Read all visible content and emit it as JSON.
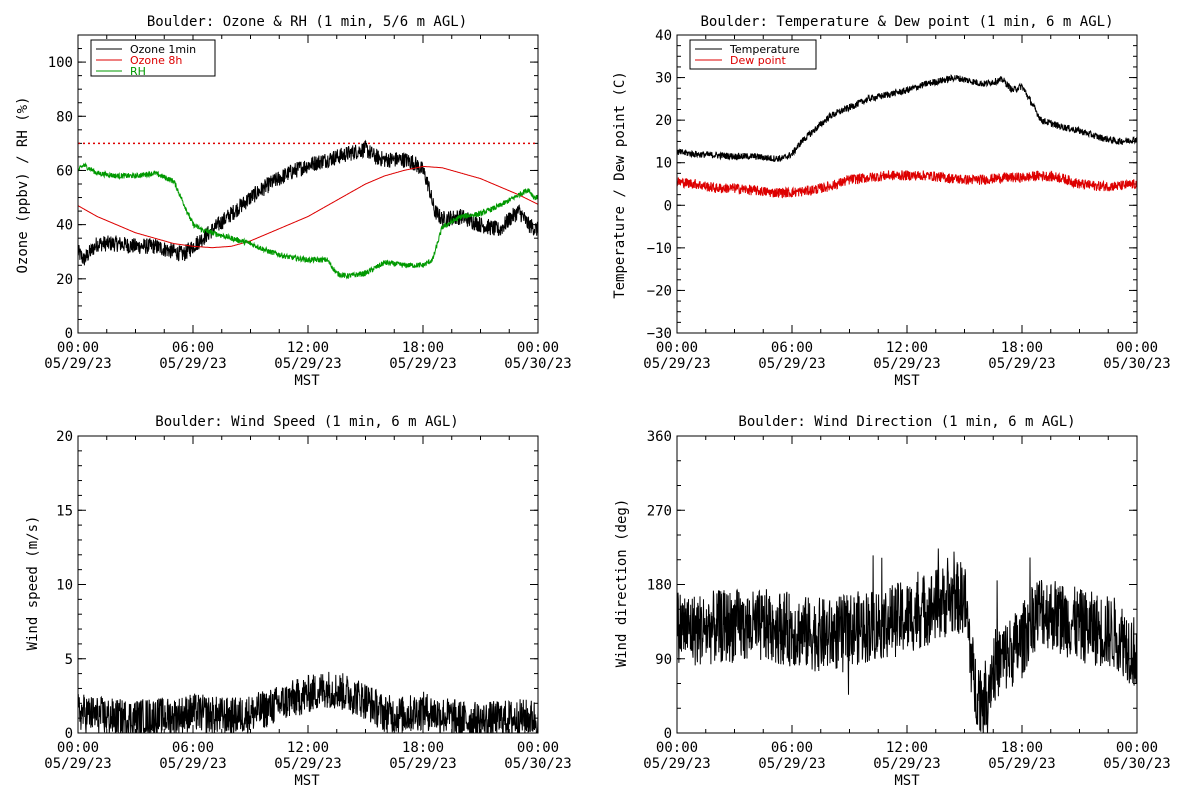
{
  "colors": {
    "black": "#000000",
    "red": "#dd0000",
    "green": "#009900"
  },
  "chart_data": [
    {
      "type": "line",
      "title": "Boulder: Ozone & RH (1 min, 5/6 m AGL)",
      "xlabel": "MST",
      "ylabel": "Ozone (ppbv) / RH (%)",
      "ylim": [
        0,
        110
      ],
      "yticks": [
        "0",
        "20",
        "40",
        "60",
        "80",
        "100"
      ],
      "ytick_values": [
        0,
        20,
        40,
        60,
        80,
        100
      ],
      "xticks": [
        {
          "time": "00:00",
          "date": "05/29/23"
        },
        {
          "time": "06:00",
          "date": "05/29/23"
        },
        {
          "time": "12:00",
          "date": "05/29/23"
        },
        {
          "time": "18:00",
          "date": "05/29/23"
        },
        {
          "time": "00:00",
          "date": "05/30/23"
        }
      ],
      "xlim_hours": [
        0,
        24
      ],
      "legend_position": "top-left",
      "reference_line": {
        "y": 70,
        "style": "dotted",
        "color": "#dd0000"
      },
      "series": [
        {
          "name": "Ozone 1min",
          "color": "#000000",
          "noise": 3,
          "x": [
            0,
            0.3,
            1,
            2,
            3,
            4,
            5,
            5.5,
            6,
            6.5,
            7,
            8,
            9,
            10,
            11,
            12,
            13,
            14,
            14.5,
            15,
            15.5,
            16,
            17,
            17.5,
            18,
            18.3,
            18.6,
            19,
            20,
            21,
            22,
            22.5,
            23,
            23.5,
            24
          ],
          "y": [
            30,
            27,
            33,
            33,
            32,
            32,
            30,
            29,
            32,
            35,
            38,
            44,
            50,
            55,
            59,
            62,
            64,
            66,
            67,
            68,
            65,
            64,
            64,
            63,
            60,
            54,
            45,
            42,
            43,
            40,
            38,
            42,
            45,
            40,
            38
          ]
        },
        {
          "name": "Ozone 8h",
          "color": "#dd0000",
          "noise": 0,
          "x": [
            0,
            1,
            2,
            3,
            4,
            5,
            6,
            7,
            8,
            9,
            10,
            11,
            12,
            13,
            14,
            15,
            16,
            17,
            18,
            19,
            20,
            21,
            22,
            23,
            24
          ],
          "y": [
            47,
            43,
            40,
            37,
            35,
            33,
            32,
            31.5,
            32,
            34,
            37,
            40,
            43,
            47,
            51,
            55,
            58,
            60,
            61.5,
            61,
            59,
            57,
            54,
            51,
            47.5
          ]
        },
        {
          "name": "RH",
          "color": "#009900",
          "noise": 1,
          "x": [
            0,
            0.3,
            1,
            2,
            3,
            4,
            5,
            5.5,
            6,
            6.5,
            7,
            8,
            9,
            10,
            11,
            12,
            13,
            13.5,
            14,
            15,
            16,
            17,
            18,
            18.5,
            19,
            20,
            21,
            22,
            22.5,
            23,
            23.5,
            23.8,
            24
          ],
          "y": [
            60,
            62,
            59,
            58,
            58,
            59,
            56,
            48,
            40,
            38,
            37,
            35,
            33,
            30,
            28,
            27,
            27,
            22,
            21,
            22,
            26,
            25,
            25,
            27,
            39,
            43,
            44,
            47,
            49,
            51,
            53,
            50,
            50
          ]
        }
      ]
    },
    {
      "type": "line",
      "title": "Boulder: Temperature & Dew point (1 min, 6 m AGL)",
      "xlabel": "MST",
      "ylabel": "Temperature / Dew point (C)",
      "ylim": [
        -30,
        40
      ],
      "yticks": [
        "−30",
        "−20",
        "−10",
        "0",
        "10",
        "20",
        "30",
        "40"
      ],
      "ytick_values": [
        -30,
        -20,
        -10,
        0,
        10,
        20,
        30,
        40
      ],
      "xticks": [
        {
          "time": "00:00",
          "date": "05/29/23"
        },
        {
          "time": "06:00",
          "date": "05/29/23"
        },
        {
          "time": "12:00",
          "date": "05/29/23"
        },
        {
          "time": "18:00",
          "date": "05/29/23"
        },
        {
          "time": "00:00",
          "date": "05/30/23"
        }
      ],
      "xlim_hours": [
        0,
        24
      ],
      "legend_position": "top-left",
      "series": [
        {
          "name": "Temperature",
          "color": "#000000",
          "noise": 0.8,
          "x": [
            0,
            1,
            2,
            3,
            4,
            5,
            5.5,
            6,
            6.5,
            7,
            8,
            9,
            10,
            11,
            12,
            13,
            14,
            14.5,
            15,
            16,
            16.5,
            17,
            17.5,
            18,
            18.5,
            19,
            20,
            21,
            22,
            23,
            23.5,
            24
          ],
          "y": [
            12.5,
            12,
            11.8,
            11.5,
            11.5,
            11,
            11,
            12,
            15,
            17,
            21,
            23,
            25,
            26,
            27,
            28.5,
            29.5,
            30,
            29.5,
            28.5,
            29,
            29.5,
            27,
            28,
            24,
            20,
            18.5,
            17.5,
            16,
            15,
            15.2,
            15.5
          ]
        },
        {
          "name": "Dew point",
          "color": "#dd0000",
          "noise": 1.2,
          "x": [
            0,
            1,
            2,
            3,
            4,
            5,
            6,
            7,
            8,
            9,
            10,
            11,
            12,
            13,
            14,
            15,
            16,
            17,
            18,
            19,
            20,
            21,
            22,
            23,
            24
          ],
          "y": [
            5.5,
            5,
            4,
            4,
            3.5,
            3,
            3,
            3.5,
            4.5,
            6,
            6.5,
            7,
            7,
            7,
            6.5,
            6,
            6,
            6.5,
            6.5,
            7,
            6.5,
            5,
            4.5,
            4.5,
            5
          ]
        }
      ]
    },
    {
      "type": "line",
      "title": "Boulder: Wind Speed (1 min, 6 m AGL)",
      "xlabel": "MST",
      "ylabel": "Wind speed (m/s)",
      "ylim": [
        0,
        20
      ],
      "yticks": [
        "0",
        "5",
        "10",
        "15",
        "20"
      ],
      "ytick_values": [
        0,
        5,
        10,
        15,
        20
      ],
      "xticks": [
        {
          "time": "00:00",
          "date": "05/29/23"
        },
        {
          "time": "06:00",
          "date": "05/29/23"
        },
        {
          "time": "12:00",
          "date": "05/29/23"
        },
        {
          "time": "18:00",
          "date": "05/29/23"
        },
        {
          "time": "00:00",
          "date": "05/30/23"
        }
      ],
      "xlim_hours": [
        0,
        24
      ],
      "series": [
        {
          "name": "",
          "color": "#000000",
          "noise": 1.3,
          "x": [
            0,
            1,
            2,
            3,
            4,
            5,
            6,
            7,
            8,
            9,
            10,
            11,
            12,
            13,
            14,
            15,
            16,
            17,
            18,
            19,
            20,
            21,
            22,
            23,
            24
          ],
          "y": [
            1.4,
            1.2,
            1.0,
            1.0,
            1.1,
            1.1,
            1.4,
            1.2,
            1.1,
            1.3,
            1.7,
            2.2,
            2.6,
            3.0,
            2.7,
            2.2,
            1.3,
            1.2,
            1.5,
            1.2,
            0.9,
            0.8,
            0.9,
            1.0,
            1.0
          ]
        }
      ]
    },
    {
      "type": "line",
      "title": "Boulder: Wind Direction (1 min, 6 m AGL)",
      "xlabel": "MST",
      "ylabel": "Wind direction (deg)",
      "ylim": [
        0,
        360
      ],
      "yticks": [
        "0",
        "90",
        "180",
        "270",
        "360"
      ],
      "ytick_values": [
        0,
        90,
        180,
        270,
        360
      ],
      "xticks": [
        {
          "time": "00:00",
          "date": "05/29/23"
        },
        {
          "time": "06:00",
          "date": "05/29/23"
        },
        {
          "time": "12:00",
          "date": "05/29/23"
        },
        {
          "time": "18:00",
          "date": "05/29/23"
        },
        {
          "time": "00:00",
          "date": "05/30/23"
        }
      ],
      "xlim_hours": [
        0,
        24
      ],
      "series": [
        {
          "name": "",
          "color": "#000000",
          "noise": 45,
          "x": [
            0,
            1,
            2,
            3,
            4,
            5,
            6,
            7,
            8,
            9,
            10,
            11,
            12,
            13,
            14,
            15,
            15.5,
            16,
            16.5,
            17,
            17.5,
            18,
            18.5,
            19,
            20,
            21,
            22,
            23,
            24
          ],
          "y": [
            130,
            125,
            128,
            130,
            128,
            130,
            125,
            120,
            118,
            125,
            130,
            135,
            140,
            150,
            160,
            165,
            60,
            40,
            80,
            90,
            100,
            110,
            140,
            150,
            140,
            130,
            125,
            120,
            95
          ]
        }
      ]
    }
  ]
}
